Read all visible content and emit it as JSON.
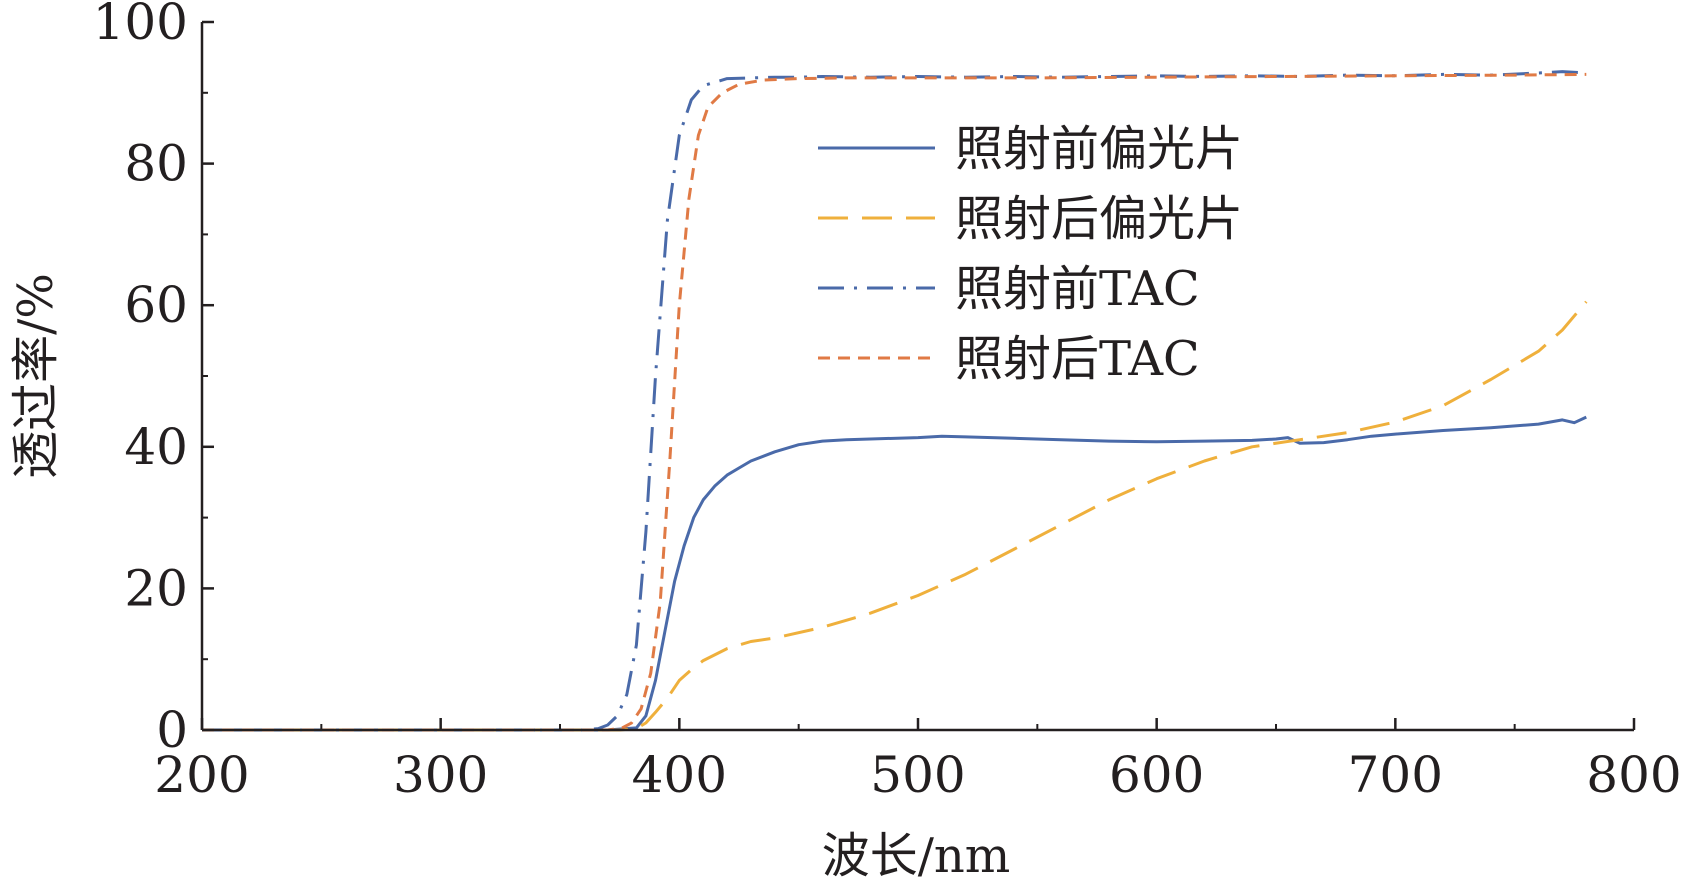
{
  "chart_data": {
    "type": "line",
    "xlabel": "波长/nm",
    "ylabel": "透过率/%",
    "xlim": [
      200,
      800
    ],
    "ylim": [
      0,
      100
    ],
    "xticks": [
      200,
      300,
      400,
      500,
      600,
      700,
      800
    ],
    "yticks": [
      0,
      20,
      40,
      60,
      80,
      100
    ],
    "grid": false,
    "legend_position": "upper-center",
    "series": [
      {
        "name": "照射前偏光片",
        "color": "#4a6aa9",
        "dash": "solid",
        "x": [
          200,
          370,
          382,
          386,
          390,
          394,
          398,
          402,
          406,
          410,
          415,
          420,
          425,
          430,
          440,
          450,
          460,
          470,
          480,
          500,
          510,
          520,
          540,
          560,
          580,
          600,
          620,
          640,
          650,
          655,
          660,
          670,
          680,
          690,
          700,
          720,
          740,
          760,
          770,
          775,
          780
        ],
        "y": [
          0,
          0,
          0.3,
          2,
          7,
          14,
          21,
          26,
          30,
          32.5,
          34.5,
          36,
          37,
          38,
          39.3,
          40.3,
          40.8,
          41,
          41.1,
          41.3,
          41.5,
          41.4,
          41.2,
          41,
          40.8,
          40.7,
          40.8,
          40.9,
          41.1,
          41.3,
          40.5,
          40.6,
          41,
          41.5,
          41.8,
          42.3,
          42.7,
          43.2,
          43.8,
          43.4,
          44.2
        ]
      },
      {
        "name": "照射后偏光片",
        "color": "#efb03c",
        "dash": "long-dash",
        "x": [
          200,
          375,
          382,
          386,
          390,
          395,
          400,
          405,
          410,
          420,
          430,
          440,
          460,
          480,
          500,
          520,
          540,
          560,
          580,
          600,
          620,
          640,
          660,
          680,
          700,
          720,
          740,
          760,
          770,
          780
        ],
        "y": [
          0,
          0,
          0.2,
          1,
          2.5,
          4.5,
          7,
          8.5,
          9.8,
          11.5,
          12.5,
          13,
          14.5,
          16.5,
          19,
          22,
          25.5,
          29,
          32.5,
          35.5,
          38,
          40,
          41,
          42,
          43.5,
          45.8,
          49.5,
          53.5,
          56.5,
          60.5
        ]
      },
      {
        "name": "照射前TAC",
        "color": "#4a6aa9",
        "dash": "dash-dot",
        "x": [
          200,
          360,
          366,
          370,
          374,
          378,
          382,
          386,
          390,
          395,
          400,
          405,
          410,
          420,
          430,
          440,
          450,
          460,
          480,
          500,
          520,
          540,
          560,
          580,
          600,
          620,
          640,
          660,
          680,
          700,
          720,
          740,
          760,
          770,
          780
        ],
        "y": [
          0,
          0,
          0.2,
          0.7,
          2,
          5,
          12,
          28,
          50,
          72,
          84,
          89,
          91,
          92,
          92.1,
          92.2,
          92.2,
          92.3,
          92.2,
          92.3,
          92.2,
          92.3,
          92.2,
          92.3,
          92.4,
          92.3,
          92.4,
          92.3,
          92.5,
          92.4,
          92.6,
          92.5,
          92.8,
          93,
          92.8
        ]
      },
      {
        "name": "照射后TAC",
        "color": "#e07a45",
        "dash": "short-dash",
        "x": [
          200,
          370,
          376,
          380,
          384,
          388,
          392,
          396,
          400,
          404,
          408,
          412,
          418,
          425,
          435,
          450,
          470,
          500,
          550,
          600,
          650,
          700,
          750,
          780
        ],
        "y": [
          0,
          0,
          0.3,
          1,
          3,
          8,
          18,
          38,
          60,
          75,
          84,
          88,
          90,
          91.2,
          91.8,
          92,
          92.1,
          92.1,
          92.1,
          92.2,
          92.3,
          92.4,
          92.5,
          92.6
        ]
      }
    ]
  }
}
